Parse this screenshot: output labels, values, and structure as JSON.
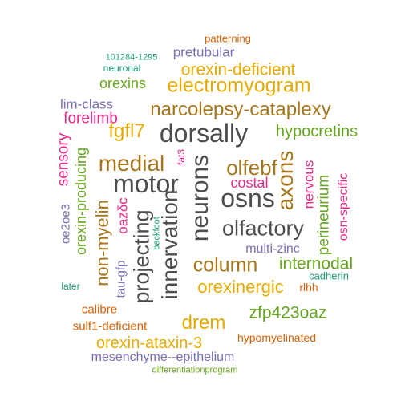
{
  "colors": {
    "dark_gray": "#4d4d4d",
    "brown": "#a6761d",
    "gold": "#e6ab02",
    "green": "#66a61e",
    "magenta": "#e7298a",
    "purple": "#7570b3",
    "orange": "#d95f02",
    "teal": "#1b9e77"
  },
  "words": [
    "patterning",
    "pretubular",
    "101284-1295",
    "neuronal",
    "orexin-deficient",
    "orexins",
    "electromyogram",
    "lim-class",
    "narcolepsy-cataplexy",
    "forelimb",
    "fgfl7",
    "dorsally",
    "hypocretins",
    "sensory",
    "medial",
    "fat3",
    "olfebf",
    "motor",
    "costal",
    "orexin-producing",
    "neurons",
    "axons",
    "nervous",
    "non-myelin",
    "osns",
    "oe2oe3",
    "oazδc",
    "perineurium",
    "osn-specific",
    "innervation",
    "projecting",
    "backfoot",
    "olfactory",
    "multi-zinc",
    "column",
    "internodal",
    "tau-gfp",
    "cadherin",
    "later",
    "orexinergic",
    "rlhh",
    "calibre",
    "zfp423oaz",
    "drem",
    "sulf1-deficient",
    "hypomyelinated",
    "orexin-ataxin-3",
    "mesenchyme--epithelium",
    "differentiationprogram"
  ]
}
